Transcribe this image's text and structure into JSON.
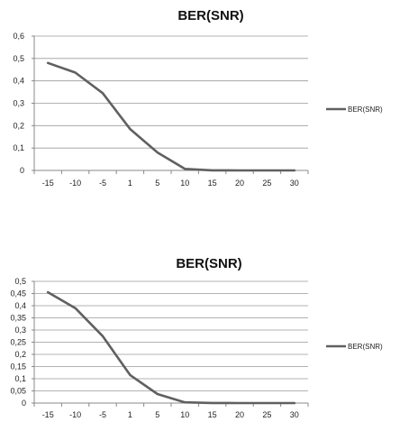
{
  "colors": {
    "series": "#606060"
  },
  "chart_data": [
    {
      "type": "line",
      "title": "BER(SNR)",
      "categories": [
        "-15",
        "-10",
        "-5",
        "1",
        "5",
        "10",
        "15",
        "20",
        "25",
        "30"
      ],
      "y_ticks": [
        "0",
        "0,1",
        "0,2",
        "0,3",
        "0,4",
        "0,5",
        "0,6"
      ],
      "ylim": [
        0,
        0.6
      ],
      "grid": true,
      "legend_position": "right",
      "series": [
        {
          "name": "BER(SNR)",
          "values": [
            0.48,
            0.437,
            0.345,
            0.185,
            0.08,
            0.007,
            0.0005,
            0.0,
            0.0,
            0.0
          ]
        }
      ]
    },
    {
      "type": "line",
      "title": "BER(SNR)",
      "categories": [
        "-15",
        "-10",
        "-5",
        "1",
        "5",
        "10",
        "15",
        "20",
        "25",
        "30"
      ],
      "y_ticks": [
        "0",
        "0,05",
        "0,1",
        "0,15",
        "0,2",
        "0,25",
        "0,3",
        "0,35",
        "0,4",
        "0,45",
        "0,5"
      ],
      "ylim": [
        0,
        0.5
      ],
      "grid": true,
      "legend_position": "right",
      "series": [
        {
          "name": "BER(SNR)",
          "values": [
            0.455,
            0.39,
            0.275,
            0.115,
            0.037,
            0.003,
            0.0005,
            0.0,
            0.0,
            0.0
          ]
        }
      ]
    }
  ]
}
